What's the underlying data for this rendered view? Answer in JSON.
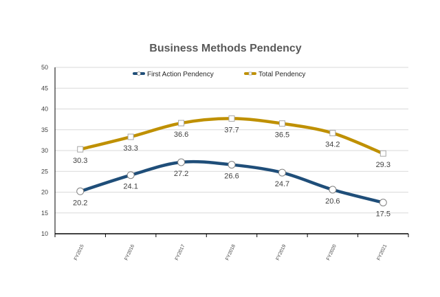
{
  "chart_data": {
    "type": "line",
    "title": "Business Methods Pendency",
    "xlabel": "",
    "ylabel": "",
    "categories": [
      "FY2015",
      "FY2016",
      "FY2017",
      "FY2018",
      "FY2019",
      "FY2020",
      "FY2021"
    ],
    "ylim": [
      10,
      50
    ],
    "yticks": [
      10,
      15,
      20,
      25,
      30,
      35,
      40,
      45,
      50
    ],
    "grid": true,
    "legend_position": "top",
    "series": [
      {
        "name": "First Action Pendency",
        "color": "#1f4e79",
        "marker": "circle",
        "values": [
          20.2,
          24.1,
          27.2,
          26.6,
          24.7,
          20.6,
          17.5
        ],
        "labels": [
          "20.2",
          "24.1",
          "27.2",
          "26.6",
          "24.7",
          "20.6",
          "17.5"
        ]
      },
      {
        "name": "Total Pendency",
        "color": "#bf9000",
        "marker": "square",
        "values": [
          30.3,
          33.3,
          36.6,
          37.7,
          36.5,
          34.2,
          29.3
        ],
        "labels": [
          "30.3",
          "33.3",
          "36.6",
          "37.7",
          "36.5",
          "34.2",
          "29.3"
        ]
      }
    ]
  }
}
